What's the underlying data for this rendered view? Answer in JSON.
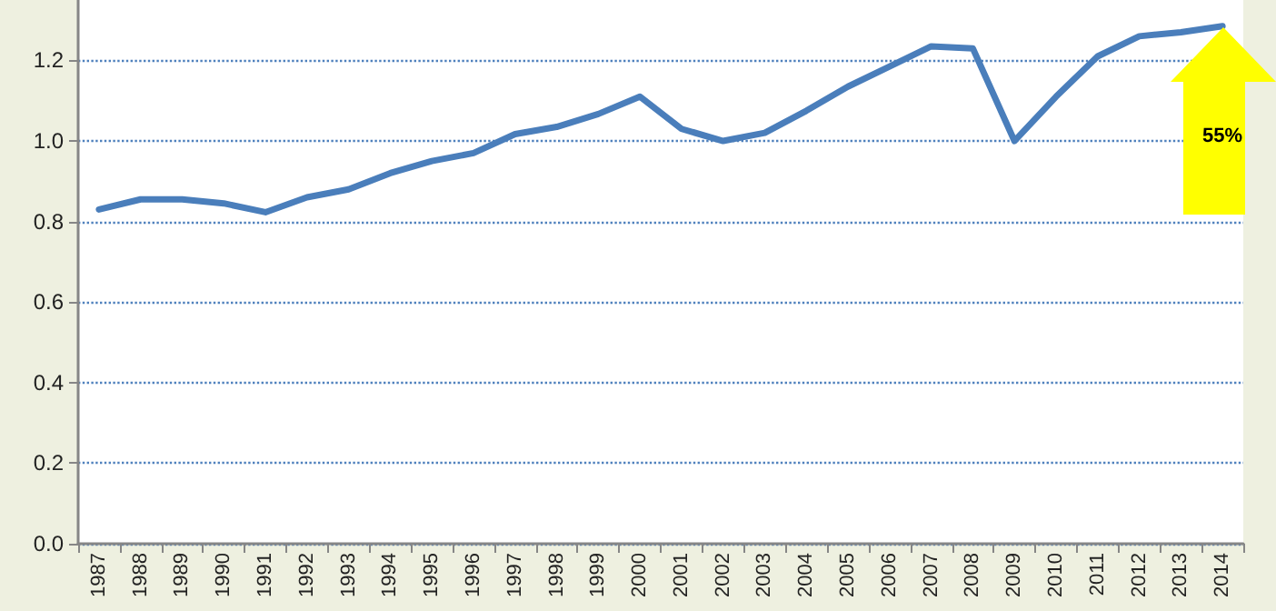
{
  "chart_data": {
    "type": "line",
    "categories": [
      "1987",
      "1988",
      "1989",
      "1990",
      "1991",
      "1992",
      "1993",
      "1994",
      "1995",
      "1996",
      "1997",
      "1998",
      "1999",
      "2000",
      "2001",
      "2002",
      "2003",
      "2004",
      "2005",
      "2006",
      "2007",
      "2008",
      "2009",
      "2010",
      "2011",
      "2012",
      "2013",
      "2014"
    ],
    "series": [
      {
        "color": "#4a7ebb",
        "values": [
          0.83,
          0.855,
          0.855,
          0.845,
          0.823,
          0.86,
          0.88,
          0.92,
          0.95,
          0.97,
          1.017,
          1.035,
          1.067,
          1.11,
          1.03,
          1.0,
          1.02,
          1.075,
          1.135,
          1.185,
          1.235,
          1.23,
          1.0,
          1.11,
          1.21,
          1.26,
          1.27,
          1.285
        ]
      }
    ],
    "ylim": [
      0,
      1.35
    ],
    "yticks": [
      {
        "value": 0,
        "label": "0.0"
      },
      {
        "value": 0.2,
        "label": "0.2"
      },
      {
        "value": 0.4,
        "label": "0.4"
      },
      {
        "value": 0.6,
        "label": "0.6"
      },
      {
        "value": 0.8,
        "label": "0.8"
      },
      {
        "value": 1.0,
        "label": "1.0"
      },
      {
        "value": 1.2,
        "label": "1.2"
      }
    ],
    "grid": "y",
    "marker": "none",
    "line_style": "solid",
    "annotations": [
      "55%"
    ]
  }
}
